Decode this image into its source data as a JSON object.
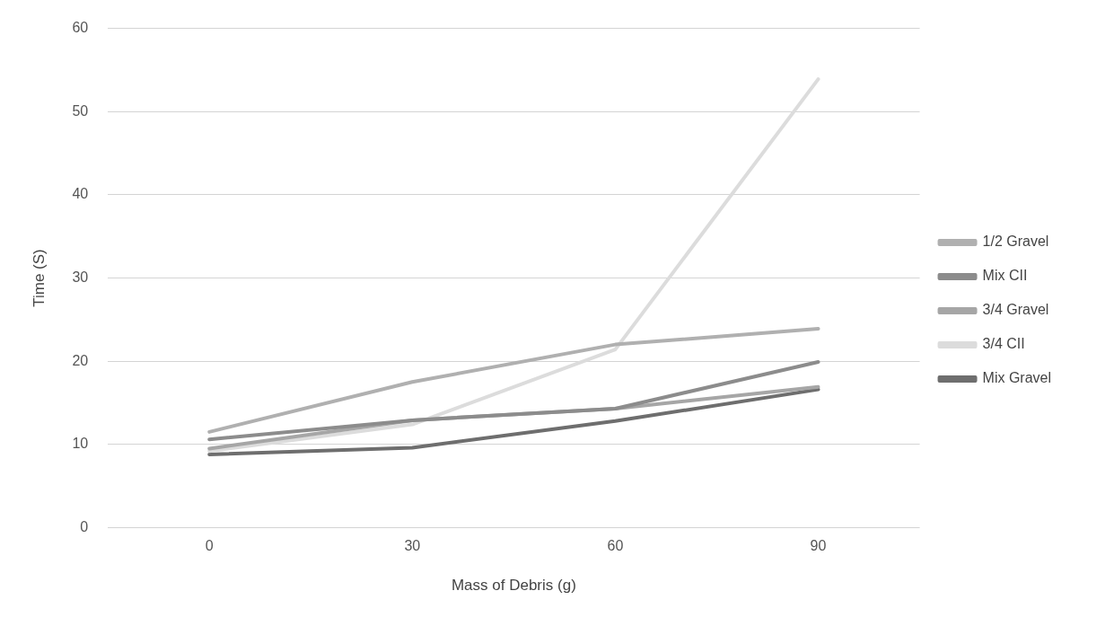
{
  "chart_data": {
    "type": "line",
    "xlabel": "Mass of Debris (g)",
    "ylabel": "Time (S)",
    "categories": [
      "0",
      "30",
      "60",
      "90"
    ],
    "ylim": [
      0,
      60
    ],
    "yticks": [
      0,
      10,
      20,
      30,
      40,
      50,
      60
    ],
    "grid": "y",
    "legend": "right",
    "marker": "none",
    "line_style": "solid",
    "series": [
      {
        "name": "1/2 Gravel",
        "color": "#b0b0b0",
        "values": [
          11.5,
          17.5,
          22.0,
          23.9
        ]
      },
      {
        "name": "Mix CII",
        "color": "#8c8c8c",
        "values": [
          10.6,
          12.9,
          14.3,
          19.9
        ]
      },
      {
        "name": "3/4 Gravel",
        "color": "#a6a6a6",
        "values": [
          9.5,
          12.9,
          14.3,
          16.9
        ]
      },
      {
        "name": "3/4 CII",
        "color": "#dcdcdc",
        "values": [
          9.2,
          12.4,
          21.4,
          53.9
        ]
      },
      {
        "name": "Mix Gravel",
        "color": "#6e6e6e",
        "values": [
          8.8,
          9.6,
          12.8,
          16.6
        ]
      }
    ]
  }
}
